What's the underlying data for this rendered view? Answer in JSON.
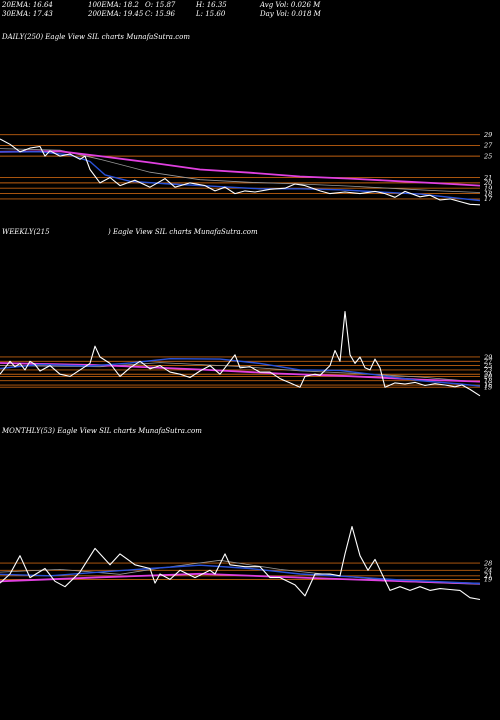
{
  "header": {
    "line1": [
      "20EMA: 16.64",
      "100EMA: 18.2",
      "O: 15.87",
      "H: 16.35",
      "Avg Vol: 0.026  M"
    ],
    "line2": [
      "30EMA: 17.43",
      "200EMA: 19.45",
      "C: 15.96",
      "L: 15.60",
      "Day Vol: 0.018  M"
    ]
  },
  "colors": {
    "price": "#ffffff",
    "ema_blue": "#2a52d8",
    "ema_pink": "#e040e0",
    "level": "#c06010",
    "ema_gray": "#9a9a9a"
  },
  "chart_data": [
    {
      "type": "line",
      "label": "DAILY(250) Eagle  View  SIL  charts MunafaSutra.com",
      "ylim": [
        14,
        31
      ],
      "levels": [
        29,
        27,
        25,
        21,
        20,
        19,
        18,
        17
      ],
      "tick_labels": [
        "29",
        "27",
        "25",
        "21",
        "20",
        "19",
        "18",
        "17"
      ],
      "n": 250,
      "price": [
        [
          0,
          28.2
        ],
        [
          10,
          27.2
        ],
        [
          20,
          25.8
        ],
        [
          30,
          26.5
        ],
        [
          40,
          26.8
        ],
        [
          45,
          25
        ],
        [
          50,
          26
        ],
        [
          60,
          25
        ],
        [
          70,
          25.4
        ],
        [
          80,
          24.4
        ],
        [
          85,
          25
        ],
        [
          90,
          22.5
        ],
        [
          100,
          20
        ],
        [
          110,
          21
        ],
        [
          120,
          19.5
        ],
        [
          135,
          20.5
        ],
        [
          150,
          19.2
        ],
        [
          165,
          20.8
        ],
        [
          175,
          19.2
        ],
        [
          190,
          20
        ],
        [
          205,
          19.5
        ],
        [
          215,
          18.5
        ],
        [
          225,
          19.2
        ],
        [
          235,
          18
        ],
        [
          245,
          18.5
        ],
        [
          255,
          18.3
        ],
        [
          270,
          18.8
        ],
        [
          285,
          19
        ],
        [
          295,
          19.8
        ],
        [
          305,
          19.5
        ],
        [
          320,
          18.5
        ],
        [
          330,
          18
        ],
        [
          345,
          18.3
        ],
        [
          360,
          18
        ],
        [
          375,
          18.4
        ],
        [
          385,
          18
        ],
        [
          395,
          17.3
        ],
        [
          405,
          18.4
        ],
        [
          420,
          17.4
        ],
        [
          430,
          17.7
        ],
        [
          440,
          16.8
        ],
        [
          450,
          17
        ],
        [
          460,
          16.5
        ],
        [
          470,
          16
        ],
        [
          480,
          15.9
        ]
      ],
      "ema_blue": [
        [
          0,
          25.8
        ],
        [
          40,
          25.8
        ],
        [
          70,
          25.2
        ],
        [
          90,
          24
        ],
        [
          105,
          21.5
        ],
        [
          130,
          20.3
        ],
        [
          170,
          19.8
        ],
        [
          210,
          19.4
        ],
        [
          260,
          18.9
        ],
        [
          300,
          18.9
        ],
        [
          340,
          18.7
        ],
        [
          380,
          18.3
        ],
        [
          420,
          17.9
        ],
        [
          460,
          17.1
        ],
        [
          480,
          16.7
        ]
      ],
      "ema_pink": [
        [
          0,
          25.8
        ],
        [
          60,
          25.9
        ],
        [
          100,
          25
        ],
        [
          150,
          23.8
        ],
        [
          200,
          22.5
        ],
        [
          250,
          21.9
        ],
        [
          300,
          21.2
        ],
        [
          350,
          20.8
        ],
        [
          400,
          20.3
        ],
        [
          440,
          19.9
        ],
        [
          480,
          19.5
        ]
      ],
      "ema_gray": [
        [
          0,
          26.4
        ],
        [
          60,
          26.1
        ],
        [
          100,
          24.4
        ],
        [
          150,
          22
        ],
        [
          200,
          20.6
        ],
        [
          250,
          20.1
        ],
        [
          300,
          19.8
        ],
        [
          350,
          19.4
        ],
        [
          400,
          18.9
        ],
        [
          440,
          18.5
        ],
        [
          480,
          18.2
        ]
      ]
    },
    {
      "type": "line",
      "label_left": "WEEKLY(215",
      "label_right": ") Eagle  View  SIL  charts MunafaSutra.com",
      "ylim": [
        10,
        60
      ],
      "levels": [
        29,
        27,
        25,
        23,
        21,
        20,
        18,
        16,
        15
      ],
      "tick_labels": [
        "29",
        "27",
        "25",
        "23",
        "21",
        "20",
        "18",
        "16",
        "15"
      ],
      "n": 215,
      "price": [
        [
          0,
          21
        ],
        [
          5,
          24
        ],
        [
          10,
          27
        ],
        [
          15,
          24.5
        ],
        [
          20,
          26
        ],
        [
          25,
          23
        ],
        [
          30,
          27
        ],
        [
          35,
          25.5
        ],
        [
          40,
          22.5
        ],
        [
          50,
          25
        ],
        [
          60,
          21
        ],
        [
          70,
          20
        ],
        [
          80,
          23
        ],
        [
          90,
          26
        ],
        [
          95,
          34
        ],
        [
          100,
          29
        ],
        [
          110,
          26
        ],
        [
          120,
          20
        ],
        [
          130,
          24
        ],
        [
          140,
          27
        ],
        [
          150,
          23.5
        ],
        [
          160,
          25
        ],
        [
          170,
          22
        ],
        [
          180,
          21
        ],
        [
          190,
          19.5
        ],
        [
          200,
          22.5
        ],
        [
          210,
          25
        ],
        [
          220,
          21
        ],
        [
          230,
          27
        ],
        [
          235,
          30
        ],
        [
          240,
          24
        ],
        [
          250,
          24.5
        ],
        [
          260,
          22
        ],
        [
          270,
          22
        ],
        [
          280,
          19
        ],
        [
          290,
          17
        ],
        [
          300,
          15
        ],
        [
          305,
          20
        ],
        [
          315,
          21
        ],
        [
          320,
          20.5
        ],
        [
          330,
          25
        ],
        [
          335,
          32
        ],
        [
          340,
          27
        ],
        [
          345,
          50
        ],
        [
          350,
          30
        ],
        [
          355,
          26
        ],
        [
          360,
          29
        ],
        [
          365,
          24
        ],
        [
          370,
          23
        ],
        [
          375,
          28
        ],
        [
          380,
          24
        ],
        [
          385,
          15
        ],
        [
          395,
          17
        ],
        [
          405,
          16.5
        ],
        [
          415,
          17.2
        ],
        [
          425,
          15.8
        ],
        [
          435,
          16.6
        ],
        [
          445,
          16
        ],
        [
          455,
          15.2
        ],
        [
          462,
          16
        ],
        [
          470,
          14
        ],
        [
          480,
          11
        ]
      ],
      "ema_blue": [
        [
          0,
          23.7
        ],
        [
          40,
          25.5
        ],
        [
          90,
          24.8
        ],
        [
          130,
          26.2
        ],
        [
          170,
          28.2
        ],
        [
          220,
          28
        ],
        [
          260,
          26
        ],
        [
          300,
          23
        ],
        [
          340,
          22.8
        ],
        [
          380,
          20.5
        ],
        [
          420,
          18
        ],
        [
          460,
          16.5
        ],
        [
          480,
          15.5
        ]
      ],
      "ema_pink": [
        [
          0,
          26.2
        ],
        [
          100,
          25.2
        ],
        [
          200,
          23.2
        ],
        [
          280,
          21.3
        ],
        [
          350,
          20.1
        ],
        [
          420,
          18.5
        ],
        [
          480,
          17.6
        ]
      ],
      "ema_gray": [
        [
          0,
          25
        ],
        [
          100,
          24.5
        ],
        [
          160,
          26.4
        ],
        [
          240,
          24.6
        ],
        [
          300,
          22.6
        ],
        [
          360,
          21.3
        ],
        [
          420,
          19.7
        ],
        [
          480,
          17.4
        ]
      ]
    },
    {
      "type": "line",
      "label": "MONTHLY(53) Eagle  View  SIL  charts MunafaSutra.com",
      "ylim": [
        5,
        68
      ],
      "levels": [
        28,
        24,
        21,
        19
      ],
      "tick_labels": [
        "28",
        "24",
        "21",
        "19"
      ],
      "n": 53,
      "price": [
        [
          0,
          17
        ],
        [
          10,
          22
        ],
        [
          20,
          32
        ],
        [
          30,
          20
        ],
        [
          45,
          25
        ],
        [
          55,
          18
        ],
        [
          65,
          15
        ],
        [
          80,
          23
        ],
        [
          95,
          36
        ],
        [
          110,
          27
        ],
        [
          120,
          33
        ],
        [
          135,
          27
        ],
        [
          150,
          25
        ],
        [
          155,
          17
        ],
        [
          160,
          22
        ],
        [
          170,
          19
        ],
        [
          180,
          24
        ],
        [
          195,
          20
        ],
        [
          210,
          24
        ],
        [
          215,
          22
        ],
        [
          225,
          33
        ],
        [
          230,
          27
        ],
        [
          245,
          26
        ],
        [
          260,
          26
        ],
        [
          270,
          20
        ],
        [
          280,
          20
        ],
        [
          295,
          16
        ],
        [
          305,
          10
        ],
        [
          315,
          22
        ],
        [
          330,
          22
        ],
        [
          340,
          21
        ],
        [
          345,
          33
        ],
        [
          352,
          48
        ],
        [
          360,
          32
        ],
        [
          368,
          24
        ],
        [
          375,
          30
        ],
        [
          382,
          22
        ],
        [
          390,
          13
        ],
        [
          400,
          15
        ],
        [
          410,
          13
        ],
        [
          420,
          15
        ],
        [
          430,
          13
        ],
        [
          440,
          14
        ],
        [
          450,
          13.5
        ],
        [
          460,
          13
        ],
        [
          470,
          9
        ],
        [
          480,
          8
        ]
      ],
      "ema_blue": [
        [
          0,
          21.8
        ],
        [
          50,
          21
        ],
        [
          100,
          23
        ],
        [
          150,
          25
        ],
        [
          200,
          26.8
        ],
        [
          250,
          25
        ],
        [
          300,
          22
        ],
        [
          350,
          20.5
        ],
        [
          400,
          18.7
        ],
        [
          450,
          17.5
        ],
        [
          480,
          16.8
        ]
      ],
      "ema_pink": [
        [
          0,
          18
        ],
        [
          100,
          20.2
        ],
        [
          200,
          22.1
        ],
        [
          300,
          20
        ],
        [
          400,
          18.1
        ],
        [
          480,
          16.7
        ]
      ],
      "ema_gray": [
        [
          0,
          23
        ],
        [
          60,
          24.5
        ],
        [
          120,
          21.8
        ],
        [
          160,
          25.2
        ],
        [
          220,
          29.5
        ],
        [
          280,
          24.5
        ],
        [
          340,
          21
        ],
        [
          400,
          17.8
        ],
        [
          480,
          16.3
        ]
      ]
    }
  ]
}
